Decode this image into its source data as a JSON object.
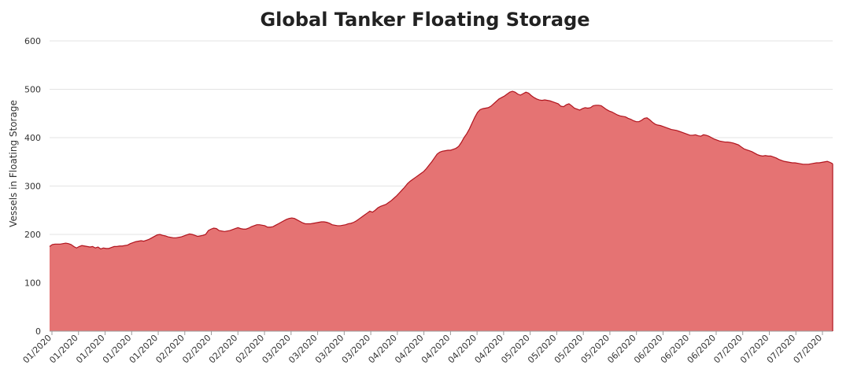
{
  "chart_data": {
    "type": "area",
    "title": "Global Tanker Floating Storage",
    "ylabel": "Vessels in Floating Storage",
    "xlabel": "",
    "ylim": [
      0,
      600
    ],
    "yticks": [
      0,
      100,
      200,
      300,
      400,
      500,
      600
    ],
    "grid": true,
    "legend": "none",
    "colors": {
      "fill": "#e57373",
      "line": "#b0141e"
    },
    "xtick_labels": [
      "01/2020",
      "01/2020",
      "01/2020",
      "01/2020",
      "01/2020",
      "02/2020",
      "02/2020",
      "02/2020",
      "02/2020",
      "03/2020",
      "03/2020",
      "03/2020",
      "03/2020",
      "04/2020",
      "04/2020",
      "04/2020",
      "04/2020",
      "04/2020",
      "05/2020",
      "05/2020",
      "05/2020",
      "05/2020",
      "06/2020",
      "06/2020",
      "06/2020",
      "06/2020",
      "07/2020",
      "07/2020",
      "07/2020",
      "07/2020"
    ],
    "values": [
      175,
      179,
      180,
      180,
      180,
      181,
      182,
      181,
      179,
      175,
      172,
      175,
      177,
      176,
      175,
      174,
      175,
      172,
      174,
      170,
      172,
      171,
      171,
      173,
      175,
      175,
      176,
      176,
      177,
      178,
      181,
      183,
      185,
      186,
      187,
      186,
      188,
      190,
      193,
      196,
      199,
      200,
      198,
      197,
      195,
      194,
      193,
      193,
      194,
      195,
      197,
      199,
      201,
      200,
      198,
      196,
      197,
      198,
      200,
      208,
      211,
      213,
      212,
      208,
      207,
      206,
      207,
      208,
      210,
      212,
      214,
      212,
      211,
      211,
      213,
      216,
      218,
      220,
      220,
      219,
      218,
      215,
      215,
      216,
      219,
      222,
      225,
      228,
      231,
      233,
      234,
      233,
      230,
      227,
      224,
      222,
      222,
      222,
      223,
      224,
      225,
      226,
      226,
      225,
      223,
      220,
      219,
      218,
      218,
      219,
      220,
      222,
      223,
      225,
      228,
      232,
      236,
      240,
      244,
      248,
      246,
      250,
      255,
      258,
      260,
      262,
      266,
      270,
      275,
      280,
      286,
      292,
      298,
      305,
      310,
      314,
      318,
      322,
      326,
      330,
      336,
      343,
      350,
      358,
      366,
      370,
      372,
      373,
      374,
      374,
      376,
      378,
      382,
      390,
      400,
      408,
      418,
      430,
      442,
      452,
      458,
      460,
      461,
      462,
      465,
      470,
      475,
      480,
      483,
      486,
      490,
      494,
      496,
      494,
      490,
      488,
      491,
      494,
      492,
      487,
      483,
      480,
      478,
      477,
      478,
      477,
      476,
      474,
      472,
      470,
      465,
      464,
      468,
      470,
      466,
      461,
      459,
      457,
      460,
      462,
      461,
      462,
      466,
      467,
      467,
      466,
      462,
      458,
      455,
      453,
      450,
      447,
      445,
      444,
      443,
      440,
      438,
      435,
      433,
      433,
      436,
      440,
      441,
      437,
      432,
      428,
      426,
      425,
      423,
      421,
      419,
      417,
      416,
      415,
      413,
      411,
      409,
      407,
      405,
      405,
      406,
      404,
      403,
      406,
      405,
      403,
      400,
      397,
      395,
      393,
      392,
      391,
      391,
      390,
      389,
      387,
      385,
      381,
      377,
      375,
      373,
      371,
      368,
      365,
      363,
      362,
      363,
      362,
      362,
      360,
      358,
      355,
      353,
      351,
      350,
      349,
      348,
      348,
      347,
      346,
      345,
      345,
      345,
      346,
      347,
      348,
      348,
      349,
      350,
      351,
      349,
      346
    ]
  }
}
